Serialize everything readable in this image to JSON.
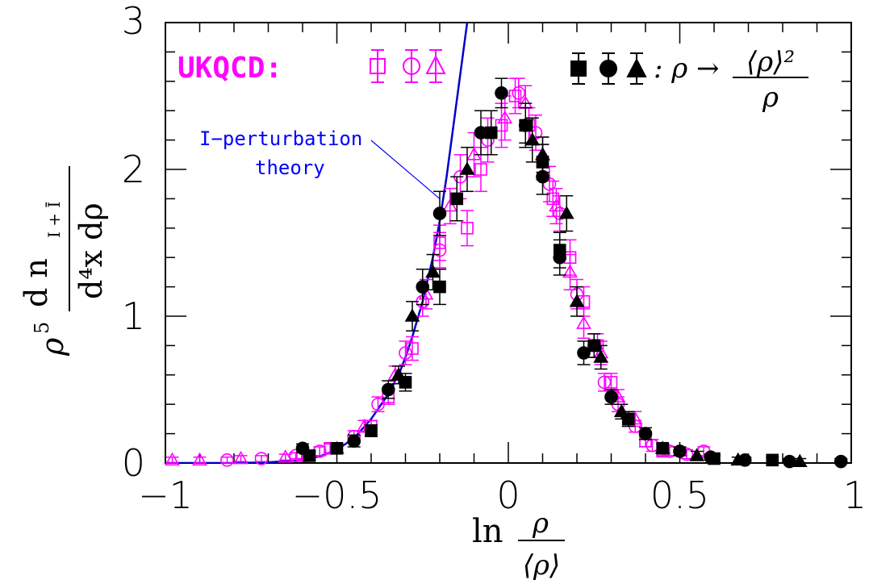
{
  "chart_data": {
    "type": "scatter",
    "xlim": [
      -1,
      1
    ],
    "ylim": [
      0,
      3
    ],
    "grid": false,
    "x_ticks": [
      {
        "value": -1,
        "label": "−1"
      },
      {
        "value": -0.5,
        "label": "−0.5"
      },
      {
        "value": 0,
        "label": "0"
      },
      {
        "value": 0.5,
        "label": "0.5"
      },
      {
        "value": 1,
        "label": "1"
      }
    ],
    "y_ticks": [
      {
        "value": 0,
        "label": "0"
      },
      {
        "value": 1,
        "label": "1"
      },
      {
        "value": 2,
        "label": "2"
      },
      {
        "value": 3,
        "label": "3"
      }
    ],
    "xlabel": {
      "prefix": "ln",
      "numerator": "ρ",
      "denominator": "⟨ρ⟩"
    },
    "ylabel": {
      "coef": "ρ",
      "power": "5",
      "numerator": "d n",
      "num_sub": "I + Ī",
      "denominator": "d⁴x dρ"
    },
    "legend": {
      "left_label": "UKQCD:",
      "left_color": "#ff00ff",
      "right_label": ": ρ →",
      "right_num": "⟨ρ⟩²",
      "right_den": "ρ",
      "right_color": "#000000",
      "placement": "top"
    },
    "annotation": {
      "line1": "I−perturbation",
      "line2": "theory",
      "color": "#0000ff",
      "pointer_to": {
        "x": -0.2,
        "y": 1.8
      }
    },
    "curve": {
      "color": "#0000cc",
      "x": [
        -1.0,
        -0.8,
        -0.7,
        -0.6,
        -0.55,
        -0.5,
        -0.45,
        -0.4,
        -0.35,
        -0.32,
        -0.3,
        -0.28,
        -0.25,
        -0.22,
        -0.2,
        -0.18,
        -0.16,
        -0.14,
        -0.12,
        -0.1
      ],
      "y": [
        0.0,
        0.0,
        0.005,
        0.02,
        0.045,
        0.09,
        0.17,
        0.3,
        0.47,
        0.6,
        0.72,
        0.86,
        1.1,
        1.4,
        1.65,
        1.95,
        2.3,
        2.65,
        3.0,
        3.3
      ]
    },
    "series": [
      {
        "name": "UKQCD square",
        "marker": "square-open",
        "color": "#ff00ff",
        "points": [
          {
            "x": -0.6,
            "y": 0.05,
            "err": 0.03
          },
          {
            "x": -0.52,
            "y": 0.1,
            "err": 0.03
          },
          {
            "x": -0.4,
            "y": 0.25,
            "err": 0.04
          },
          {
            "x": -0.35,
            "y": 0.45,
            "err": 0.05
          },
          {
            "x": -0.28,
            "y": 0.78,
            "err": 0.08
          },
          {
            "x": -0.2,
            "y": 1.5,
            "err": 0.12
          },
          {
            "x": -0.12,
            "y": 1.6,
            "err": 0.12
          },
          {
            "x": -0.08,
            "y": 2.0,
            "err": 0.15
          },
          {
            "x": -0.02,
            "y": 2.3,
            "err": 0.15
          },
          {
            "x": 0.02,
            "y": 2.5,
            "err": 0.12
          },
          {
            "x": 0.06,
            "y": 2.3,
            "err": 0.12
          },
          {
            "x": 0.1,
            "y": 2.05,
            "err": 0.12
          },
          {
            "x": 0.13,
            "y": 1.8,
            "err": 0.12
          },
          {
            "x": 0.18,
            "y": 1.4,
            "err": 0.12
          },
          {
            "x": 0.22,
            "y": 1.1,
            "err": 0.1
          },
          {
            "x": 0.26,
            "y": 0.8,
            "err": 0.08
          },
          {
            "x": 0.3,
            "y": 0.55,
            "err": 0.06
          },
          {
            "x": 0.35,
            "y": 0.3,
            "err": 0.05
          },
          {
            "x": 0.4,
            "y": 0.15,
            "err": 0.04
          },
          {
            "x": 0.45,
            "y": 0.08,
            "err": 0.03
          }
        ]
      },
      {
        "name": "UKQCD circle",
        "marker": "circle-open",
        "color": "#ff00ff",
        "points": [
          {
            "x": -0.82,
            "y": 0.02,
            "err": 0.02
          },
          {
            "x": -0.72,
            "y": 0.03,
            "err": 0.02
          },
          {
            "x": -0.62,
            "y": 0.05,
            "err": 0.02
          },
          {
            "x": -0.55,
            "y": 0.08,
            "err": 0.03
          },
          {
            "x": -0.45,
            "y": 0.18,
            "err": 0.04
          },
          {
            "x": -0.38,
            "y": 0.4,
            "err": 0.05
          },
          {
            "x": -0.3,
            "y": 0.75,
            "err": 0.08
          },
          {
            "x": -0.25,
            "y": 1.1,
            "err": 0.1
          },
          {
            "x": -0.2,
            "y": 1.45,
            "err": 0.12
          },
          {
            "x": -0.14,
            "y": 1.95,
            "err": 0.15
          },
          {
            "x": -0.06,
            "y": 2.2,
            "err": 0.15
          },
          {
            "x": 0.03,
            "y": 2.52,
            "err": 0.1
          },
          {
            "x": 0.08,
            "y": 2.25,
            "err": 0.12
          },
          {
            "x": 0.12,
            "y": 1.9,
            "err": 0.12
          },
          {
            "x": 0.15,
            "y": 1.7,
            "err": 0.12
          },
          {
            "x": 0.2,
            "y": 1.15,
            "err": 0.1
          },
          {
            "x": 0.25,
            "y": 0.8,
            "err": 0.08
          },
          {
            "x": 0.28,
            "y": 0.55,
            "err": 0.06
          },
          {
            "x": 0.32,
            "y": 0.4,
            "err": 0.05
          },
          {
            "x": 0.37,
            "y": 0.25,
            "err": 0.04
          },
          {
            "x": 0.42,
            "y": 0.12,
            "err": 0.04
          },
          {
            "x": 0.47,
            "y": 0.08,
            "err": 0.03
          },
          {
            "x": 0.52,
            "y": 0.06,
            "err": 0.03
          },
          {
            "x": 0.57,
            "y": 0.08,
            "err": 0.03
          }
        ]
      },
      {
        "name": "UKQCD triangle",
        "marker": "triangle-open",
        "color": "#ff00ff",
        "points": [
          {
            "x": -0.98,
            "y": 0.02,
            "err": 0.02
          },
          {
            "x": -0.9,
            "y": 0.02,
            "err": 0.02
          },
          {
            "x": -0.78,
            "y": 0.03,
            "err": 0.02
          },
          {
            "x": -0.65,
            "y": 0.04,
            "err": 0.02
          },
          {
            "x": -0.5,
            "y": 0.1,
            "err": 0.03
          },
          {
            "x": -0.42,
            "y": 0.25,
            "err": 0.04
          },
          {
            "x": -0.33,
            "y": 0.6,
            "err": 0.06
          },
          {
            "x": -0.24,
            "y": 1.15,
            "err": 0.1
          },
          {
            "x": -0.17,
            "y": 1.75,
            "err": 0.12
          },
          {
            "x": -0.1,
            "y": 2.1,
            "err": 0.15
          },
          {
            "x": -0.01,
            "y": 2.35,
            "err": 0.15
          },
          {
            "x": 0.05,
            "y": 2.45,
            "err": 0.12
          },
          {
            "x": 0.1,
            "y": 2.1,
            "err": 0.12
          },
          {
            "x": 0.14,
            "y": 1.75,
            "err": 0.12
          },
          {
            "x": 0.18,
            "y": 1.3,
            "err": 0.12
          },
          {
            "x": 0.22,
            "y": 0.95,
            "err": 0.1
          },
          {
            "x": 0.27,
            "y": 0.75,
            "err": 0.08
          },
          {
            "x": 0.32,
            "y": 0.45,
            "err": 0.05
          },
          {
            "x": 0.37,
            "y": 0.3,
            "err": 0.05
          }
        ]
      },
      {
        "name": "rho square",
        "marker": "square-filled",
        "color": "#000000",
        "points": [
          {
            "x": -0.58,
            "y": 0.05,
            "err": 0.03
          },
          {
            "x": -0.5,
            "y": 0.1,
            "err": 0.03
          },
          {
            "x": -0.4,
            "y": 0.22,
            "err": 0.04
          },
          {
            "x": -0.3,
            "y": 0.55,
            "err": 0.06
          },
          {
            "x": -0.2,
            "y": 1.2,
            "err": 0.12
          },
          {
            "x": -0.15,
            "y": 1.8,
            "err": 0.15
          },
          {
            "x": -0.05,
            "y": 2.25,
            "err": 0.15
          },
          {
            "x": 0.05,
            "y": 2.3,
            "err": 0.15
          },
          {
            "x": 0.1,
            "y": 2.05,
            "err": 0.12
          },
          {
            "x": 0.15,
            "y": 1.45,
            "err": 0.12
          },
          {
            "x": 0.25,
            "y": 0.8,
            "err": 0.08
          },
          {
            "x": 0.35,
            "y": 0.3,
            "err": 0.05
          },
          {
            "x": 0.45,
            "y": 0.1,
            "err": 0.03
          },
          {
            "x": 0.6,
            "y": 0.03,
            "err": 0.02
          },
          {
            "x": 0.77,
            "y": 0.02,
            "err": 0.02
          }
        ]
      },
      {
        "name": "rho circle",
        "marker": "circle-filled",
        "color": "#000000",
        "points": [
          {
            "x": -0.6,
            "y": 0.1,
            "err": 0.03
          },
          {
            "x": -0.45,
            "y": 0.15,
            "err": 0.04
          },
          {
            "x": -0.35,
            "y": 0.5,
            "err": 0.06
          },
          {
            "x": -0.25,
            "y": 1.2,
            "err": 0.12
          },
          {
            "x": -0.2,
            "y": 1.7,
            "err": 0.15
          },
          {
            "x": -0.08,
            "y": 2.25,
            "err": 0.15
          },
          {
            "x": -0.02,
            "y": 2.52,
            "err": 0.1
          },
          {
            "x": 0.05,
            "y": 2.3,
            "err": 0.12
          },
          {
            "x": 0.1,
            "y": 1.95,
            "err": 0.12
          },
          {
            "x": 0.15,
            "y": 1.4,
            "err": 0.12
          },
          {
            "x": 0.22,
            "y": 0.75,
            "err": 0.08
          },
          {
            "x": 0.3,
            "y": 0.45,
            "err": 0.05
          },
          {
            "x": 0.4,
            "y": 0.2,
            "err": 0.04
          },
          {
            "x": 0.5,
            "y": 0.08,
            "err": 0.03
          },
          {
            "x": 0.59,
            "y": 0.04,
            "err": 0.02
          },
          {
            "x": 0.69,
            "y": 0.02,
            "err": 0.02
          },
          {
            "x": 0.82,
            "y": 0.01,
            "err": 0.02
          },
          {
            "x": 0.97,
            "y": 0.01,
            "err": 0.02
          }
        ]
      },
      {
        "name": "rho triangle",
        "marker": "triangle-filled",
        "color": "#000000",
        "points": [
          {
            "x": -0.32,
            "y": 0.6,
            "err": 0.06
          },
          {
            "x": -0.28,
            "y": 1.0,
            "err": 0.1
          },
          {
            "x": -0.22,
            "y": 1.3,
            "err": 0.12
          },
          {
            "x": -0.12,
            "y": 2.0,
            "err": 0.15
          },
          {
            "x": 0.07,
            "y": 2.2,
            "err": 0.15
          },
          {
            "x": 0.1,
            "y": 2.1,
            "err": 0.12
          },
          {
            "x": 0.17,
            "y": 1.7,
            "err": 0.12
          },
          {
            "x": 0.2,
            "y": 1.1,
            "err": 0.1
          },
          {
            "x": 0.27,
            "y": 0.72,
            "err": 0.08
          },
          {
            "x": 0.33,
            "y": 0.35,
            "err": 0.05
          },
          {
            "x": 0.45,
            "y": 0.1,
            "err": 0.03
          },
          {
            "x": 0.55,
            "y": 0.05,
            "err": 0.03
          },
          {
            "x": 0.67,
            "y": 0.02,
            "err": 0.02
          },
          {
            "x": 0.85,
            "y": 0.01,
            "err": 0.02
          }
        ]
      }
    ]
  }
}
